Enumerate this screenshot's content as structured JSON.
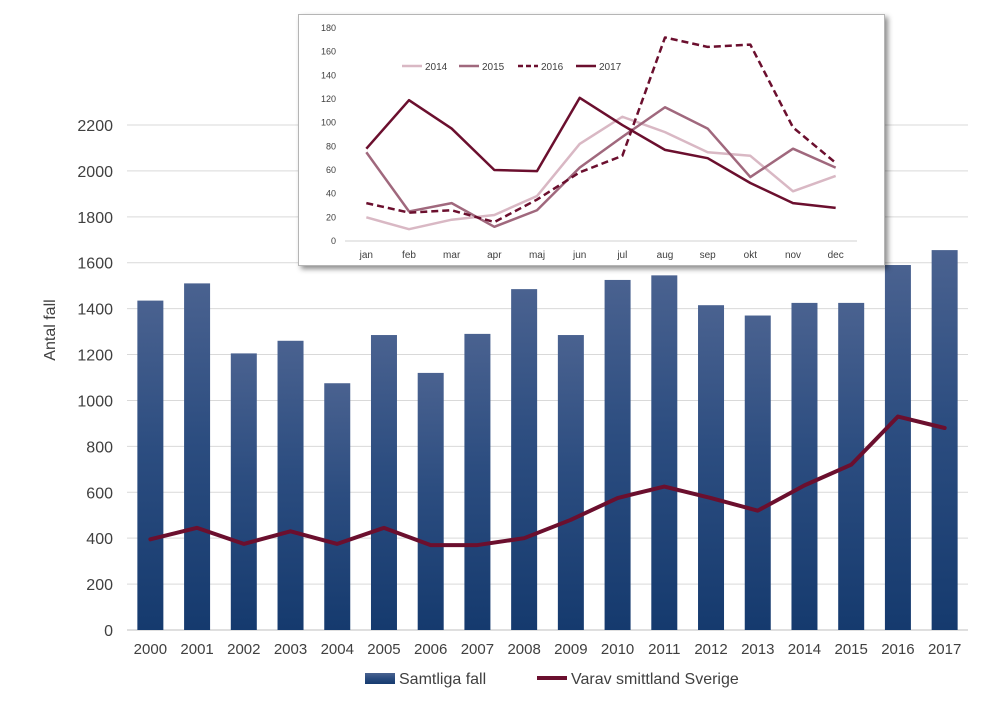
{
  "chart_data": [
    {
      "type": "bar",
      "categories": [
        "2000",
        "2001",
        "2002",
        "2003",
        "2004",
        "2005",
        "2006",
        "2007",
        "2008",
        "2009",
        "2010",
        "2011",
        "2012",
        "2013",
        "2014",
        "2015",
        "2016",
        "2017"
      ],
      "series": [
        {
          "name": "Samtliga fall",
          "type": "bar",
          "values": [
            1435,
            1510,
            1205,
            1260,
            1075,
            1285,
            1120,
            1290,
            1485,
            1285,
            1525,
            1545,
            1415,
            1370,
            1425,
            1425,
            1590,
            1655
          ]
        },
        {
          "name": "Varav smittland Sverige",
          "type": "line",
          "values": [
            395,
            445,
            375,
            430,
            375,
            445,
            370,
            370,
            400,
            480,
            575,
            625,
            575,
            520,
            630,
            720,
            930,
            880
          ]
        }
      ],
      "ylabel": "Antal fall",
      "ylim": [
        0,
        2400
      ],
      "yticks": [
        0,
        200,
        400,
        600,
        800,
        1000,
        1200,
        1400,
        1600,
        1800,
        2000,
        2200
      ],
      "grid": true,
      "legend": "bottom",
      "colors": {
        "bar_top": "#4a6290",
        "bar_bottom": "#1a3e72",
        "line": "#6b0f2e",
        "grid": "#d9d9d9"
      }
    },
    {
      "type": "line",
      "categories": [
        "jan",
        "feb",
        "mar",
        "apr",
        "maj",
        "jun",
        "jul",
        "aug",
        "sep",
        "okt",
        "nov",
        "dec"
      ],
      "series": [
        {
          "name": "2014",
          "color": "#d9b8c4",
          "dash": "solid",
          "values": [
            20,
            10,
            18,
            22,
            38,
            82,
            105,
            92,
            75,
            72,
            42,
            55
          ]
        },
        {
          "name": "2015",
          "color": "#a0687d",
          "dash": "solid",
          "values": [
            75,
            25,
            32,
            12,
            26,
            62,
            88,
            113,
            95,
            54,
            78,
            62
          ]
        },
        {
          "name": "2016",
          "color": "#6b0f2e",
          "dash": "dashed",
          "values": [
            32,
            24,
            26,
            16,
            35,
            58,
            72,
            172,
            164,
            166,
            96,
            66
          ]
        },
        {
          "name": "2017",
          "color": "#6b0f2e",
          "dash": "solid",
          "values": [
            78,
            119,
            95,
            60,
            59,
            121,
            98,
            77,
            70,
            49,
            32,
            28
          ]
        }
      ],
      "ylim": [
        0,
        180
      ],
      "yticks": [
        0,
        20,
        40,
        60,
        80,
        100,
        120,
        140,
        160,
        180
      ],
      "grid": false,
      "legend": "top-left"
    }
  ]
}
